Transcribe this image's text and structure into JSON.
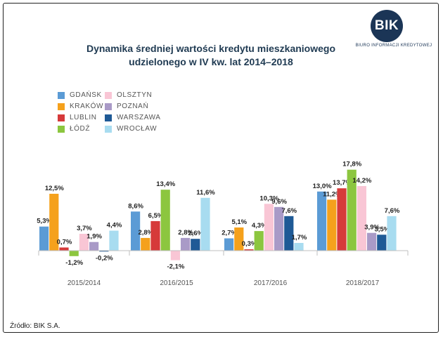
{
  "title_line1": "Dynamika średniej wartości kredytu mieszkaniowego",
  "title_line2": "udzielonego w IV kw. lat 2014–2018",
  "logo": {
    "mark": "BIK",
    "subtitle": "BIURO INFORMACJI KREDYTOWEJ",
    "color": "#1b3556"
  },
  "source": "Źródło: BIK S.A.",
  "chart_data": {
    "type": "bar",
    "title": "Dynamika średniej wartości kredytu mieszkaniowego udzielonego w IV kw. lat 2014–2018",
    "xlabel": "",
    "ylabel": "",
    "ylim": [
      -3,
      19
    ],
    "grid": false,
    "legend_position": "top-left",
    "categories": [
      "2015/2014",
      "2016/2015",
      "2017/2016",
      "2018/2017"
    ],
    "series": [
      {
        "name": "GDAŃSK",
        "color": "#5b9bd5",
        "values": [
          5.3,
          8.6,
          2.7,
          13.0
        ],
        "labels": [
          "5,3%",
          "8,6%",
          "2,7%",
          "13,0%"
        ]
      },
      {
        "name": "KRAKÓW",
        "color": "#f5a11c",
        "values": [
          12.5,
          2.8,
          5.1,
          11.2
        ],
        "labels": [
          "12,5%",
          "2,8%",
          "5,1%",
          "11,2%"
        ]
      },
      {
        "name": "LUBLIN",
        "color": "#d63a3a",
        "values": [
          0.7,
          6.5,
          0.3,
          13.7
        ],
        "labels": [
          "0,7%",
          "6,5%",
          "0,3%",
          "13,7%"
        ]
      },
      {
        "name": "ŁÓDŹ",
        "color": "#8cc63f",
        "values": [
          -1.2,
          13.4,
          4.3,
          17.8
        ],
        "labels": [
          "-1,2%",
          "13,4%",
          "4,3%",
          "17,8%"
        ]
      },
      {
        "name": "OLSZTYN",
        "color": "#f9c6d5",
        "values": [
          3.7,
          -2.1,
          10.3,
          14.2
        ],
        "labels": [
          "3,7%",
          "-2,1%",
          "10,3%",
          "14,2%"
        ]
      },
      {
        "name": "POZNAŃ",
        "color": "#a99ac7",
        "values": [
          1.9,
          2.8,
          9.6,
          3.9
        ],
        "labels": [
          "1,9%",
          "2,8%",
          "9,6%",
          "3,9%"
        ]
      },
      {
        "name": "WARSZAWA",
        "color": "#1f5a96",
        "values": [
          -0.2,
          2.6,
          7.6,
          3.5
        ],
        "labels": [
          "-0,2%",
          "2,6%",
          "7,6%",
          "3,5%"
        ]
      },
      {
        "name": "WROCŁAW",
        "color": "#a8dcf0",
        "values": [
          4.4,
          11.6,
          1.7,
          7.6
        ],
        "labels": [
          "4,4%",
          "11,6%",
          "1,7%",
          "7,6%"
        ]
      }
    ]
  }
}
